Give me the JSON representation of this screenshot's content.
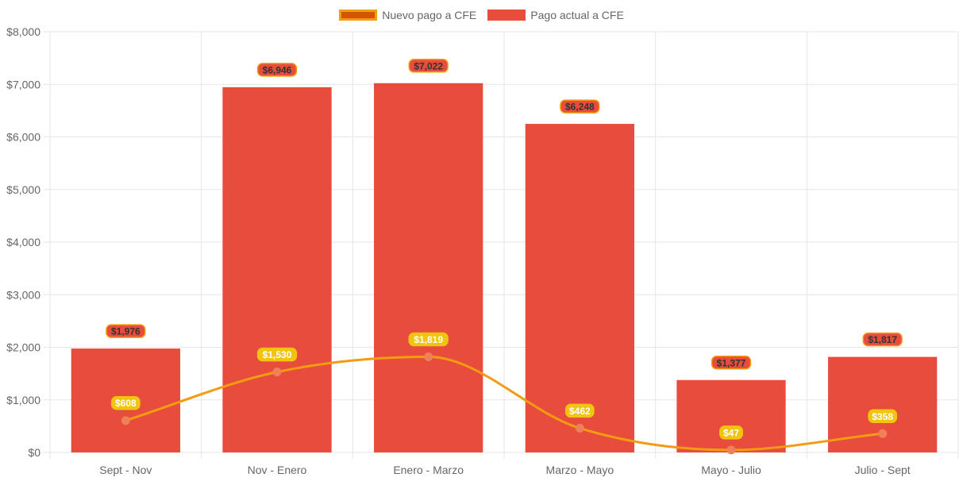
{
  "chart_data": {
    "type": "bar",
    "categories": [
      "Sept - Nov",
      "Nov - Enero",
      "Enero - Marzo",
      "Marzo - Mayo",
      "Mayo - Julio",
      "Julio - Sept"
    ],
    "series": [
      {
        "name": "Pago actual a CFE",
        "type": "bar",
        "values": [
          1976,
          6946,
          7022,
          6248,
          1377,
          1817
        ],
        "labels": [
          "$1,976",
          "$6,946",
          "$7,022",
          "$6,248",
          "$1,377",
          "$1,817"
        ],
        "color": "#e74c3c"
      },
      {
        "name": "Nuevo pago a CFE",
        "type": "line",
        "values": [
          608,
          1530,
          1819,
          462,
          47,
          358
        ],
        "labels": [
          "$608",
          "$1,530",
          "$1,819",
          "$462",
          "$47",
          "$358"
        ],
        "color": "#f39c12",
        "marker_color": "#f0805a",
        "legend_fill": "#d35400"
      }
    ],
    "y_ticks": [
      "$0",
      "$1,000",
      "$2,000",
      "$3,000",
      "$4,000",
      "$5,000",
      "$6,000",
      "$7,000",
      "$8,000"
    ],
    "ylim": [
      0,
      8000
    ],
    "grid": true,
    "legend_position": "top-center",
    "bar_label_bg": "#e74c3c",
    "bar_label_border": "#f39c12",
    "bar_label_text": "#333333",
    "line_label_bg": "#f1c40f",
    "line_label_text": "#ffffff",
    "axis_color": "#666666",
    "grid_color": "#e6e6e6"
  }
}
